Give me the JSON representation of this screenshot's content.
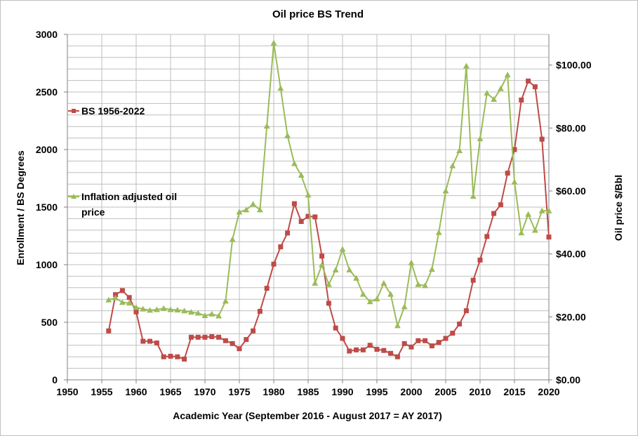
{
  "chart_data": {
    "type": "line",
    "title": "Oil price BS Trend",
    "xlabel": "Academic Year (September 2016 - August 2017 = AY 2017)",
    "ylabel_left": "Enrollment / BS Degrees",
    "ylabel_right": "Oil price $/Bbl",
    "xlim": [
      1950,
      2020
    ],
    "ylim_left": [
      0,
      3000
    ],
    "ylim_right": [
      0,
      109.74
    ],
    "x_ticks": [
      "1950",
      "1955",
      "1960",
      "1965",
      "1970",
      "1975",
      "1980",
      "1985",
      "1990",
      "1995",
      "2000",
      "2005",
      "2010",
      "2015",
      "2020"
    ],
    "y_left_ticks": [
      "0",
      "500",
      "1000",
      "1500",
      "2000",
      "2500",
      "3000"
    ],
    "y_right_ticks": [
      "$0.00",
      "$20.00",
      "$40.00",
      "$60.00",
      "$80.00",
      "$100.00"
    ],
    "grid": true,
    "series": [
      {
        "name": "BS 1956-2022",
        "axis": "left",
        "color": "#be4b48",
        "marker": "square",
        "x": [
          1956,
          1957,
          1958,
          1959,
          1960,
          1961,
          1962,
          1963,
          1964,
          1965,
          1966,
          1967,
          1968,
          1969,
          1970,
          1971,
          1972,
          1973,
          1974,
          1975,
          1976,
          1977,
          1978,
          1979,
          1980,
          1981,
          1982,
          1983,
          1984,
          1985,
          1986,
          1987,
          1988,
          1989,
          1990,
          1991,
          1992,
          1993,
          1994,
          1995,
          1996,
          1997,
          1998,
          1999,
          2000,
          2001,
          2002,
          2003,
          2004,
          2005,
          2006,
          2007,
          2008,
          2009,
          2010,
          2011,
          2012,
          2013,
          2014,
          2015,
          2016,
          2017,
          2018,
          2019,
          2020
        ],
        "values": [
          425,
          740,
          775,
          715,
          590,
          335,
          335,
          320,
          200,
          205,
          200,
          180,
          370,
          370,
          370,
          375,
          370,
          340,
          315,
          270,
          350,
          425,
          595,
          795,
          1005,
          1155,
          1275,
          1530,
          1375,
          1420,
          1415,
          1075,
          665,
          450,
          360,
          250,
          260,
          260,
          300,
          265,
          255,
          230,
          200,
          315,
          285,
          340,
          340,
          295,
          325,
          360,
          405,
          485,
          600,
          865,
          1040,
          1245,
          1445,
          1520,
          1795,
          2000,
          2430,
          2595,
          2545,
          2090,
          1240
        ]
      },
      {
        "name": "Inflation adjusted oil price",
        "axis": "right",
        "color": "#9bbb59",
        "marker": "triangle",
        "x": [
          1956,
          1957,
          1958,
          1959,
          1960,
          1961,
          1962,
          1963,
          1964,
          1965,
          1966,
          1967,
          1968,
          1969,
          1970,
          1971,
          1972,
          1973,
          1974,
          1975,
          1976,
          1977,
          1978,
          1979,
          1980,
          1981,
          1982,
          1983,
          1984,
          1985,
          1986,
          1987,
          1988,
          1989,
          1990,
          1991,
          1992,
          1993,
          1994,
          1995,
          1996,
          1997,
          1998,
          1999,
          2000,
          2001,
          2002,
          2003,
          2004,
          2005,
          2006,
          2007,
          2008,
          2009,
          2010,
          2011,
          2012,
          2013,
          2014,
          2015,
          2016,
          2017,
          2018,
          2019,
          2020
        ],
        "values": [
          25.4,
          26.0,
          24.6,
          24.4,
          23.0,
          22.5,
          22.1,
          22.3,
          22.7,
          22.3,
          22.2,
          21.9,
          21.5,
          21.2,
          20.4,
          20.9,
          20.3,
          25.0,
          44.6,
          53.3,
          54.0,
          55.8,
          54.0,
          80.6,
          107.0,
          92.6,
          77.6,
          68.7,
          65.0,
          58.7,
          30.7,
          36.5,
          30.3,
          34.9,
          41.5,
          34.9,
          32.3,
          27.2,
          24.8,
          25.7,
          30.7,
          27.2,
          17.2,
          23.2,
          37.2,
          30.3,
          29.9,
          35.1,
          46.8,
          60.0,
          68.0,
          72.8,
          99.7,
          58.3,
          76.6,
          91.1,
          89.1,
          92.5,
          96.9,
          62.8,
          46.7,
          52.6,
          47.5,
          53.7,
          53.7
        ]
      }
    ],
    "legend": [
      {
        "label_line1": "BS 1956-2022",
        "label_line2": ""
      },
      {
        "label_line1": "Inflation adjusted oil",
        "label_line2": "price"
      }
    ],
    "legend_position": "left"
  }
}
